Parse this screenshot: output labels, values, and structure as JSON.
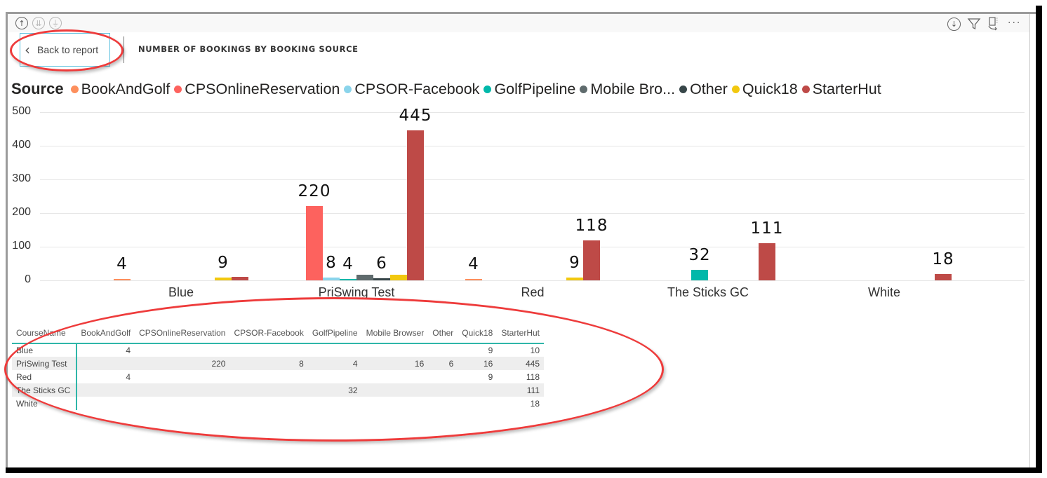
{
  "window": {
    "title": "NUMBER OF BOOKINGS BY BOOKING SOURCE",
    "back_button_label": "Back to report",
    "back_icon": "chevron-left-icon",
    "top_left_icons": [
      "drill-up-icon",
      "drill-down-icon",
      "expand-hierarchy-icon"
    ],
    "top_right_icons": [
      "drill-mode-icon",
      "filter-icon",
      "focus-mode-icon",
      "more-options-icon"
    ]
  },
  "legend": {
    "title": "Source",
    "items": [
      {
        "label": "BookAndGolf",
        "color": "#fd8f5d"
      },
      {
        "label": "CPSOnlineReservation",
        "color": "#fd625e"
      },
      {
        "label": "CPSOR-Facebook",
        "color": "#8ad4eb"
      },
      {
        "label": "GolfPipeline",
        "color": "#01b8aa"
      },
      {
        "label": "Mobile Bro...",
        "color": "#5f6b6d"
      },
      {
        "label": "Other",
        "color": "#374649"
      },
      {
        "label": "Quick18",
        "color": "#f2c80f"
      },
      {
        "label": "StarterHut",
        "color": "#be4a47"
      }
    ]
  },
  "chart_data": {
    "type": "bar",
    "title": "NUMBER OF BOOKINGS BY BOOKING SOURCE",
    "xlabel": "",
    "ylabel": "",
    "ylim": [
      0,
      500
    ],
    "yticks": [
      0,
      100,
      200,
      300,
      400,
      500
    ],
    "grid": true,
    "legend_position": "top",
    "legend_title": "Source",
    "categories": [
      "Blue",
      "PriSwing Test",
      "Red",
      "The Sticks GC",
      "White"
    ],
    "series": [
      {
        "name": "BookAndGolf",
        "color": "#fd8f5d",
        "values": [
          4,
          null,
          4,
          null,
          null
        ]
      },
      {
        "name": "CPSOnlineReservation",
        "color": "#fd625e",
        "values": [
          null,
          220,
          null,
          null,
          null
        ]
      },
      {
        "name": "CPSOR-Facebook",
        "color": "#8ad4eb",
        "values": [
          null,
          8,
          null,
          null,
          null
        ]
      },
      {
        "name": "GolfPipeline",
        "color": "#01b8aa",
        "values": [
          null,
          4,
          null,
          32,
          null
        ]
      },
      {
        "name": "Mobile Browser",
        "color": "#5f6b6d",
        "values": [
          null,
          16,
          null,
          null,
          null
        ]
      },
      {
        "name": "Other",
        "color": "#374649",
        "values": [
          null,
          6,
          null,
          null,
          null
        ]
      },
      {
        "name": "Quick18",
        "color": "#f2c80f",
        "values": [
          9,
          16,
          9,
          null,
          null
        ]
      },
      {
        "name": "StarterHut",
        "color": "#be4a47",
        "values": [
          10,
          445,
          118,
          111,
          18
        ]
      }
    ],
    "visible_data_labels": [
      {
        "category": "Blue",
        "series": "BookAndGolf",
        "text": "4"
      },
      {
        "category": "Blue",
        "series": "Quick18",
        "text": "9"
      },
      {
        "category": "PriSwing Test",
        "series": "CPSOnlineReservation",
        "text": "220"
      },
      {
        "category": "PriSwing Test",
        "series": "CPSOR-Facebook",
        "text": "8"
      },
      {
        "category": "PriSwing Test",
        "series": "GolfPipeline",
        "text": "4"
      },
      {
        "category": "PriSwing Test",
        "series": "Other",
        "text": "6"
      },
      {
        "category": "PriSwing Test",
        "series": "StarterHut",
        "text": "445"
      },
      {
        "category": "Red",
        "series": "BookAndGolf",
        "text": "4"
      },
      {
        "category": "Red",
        "series": "Quick18",
        "text": "9"
      },
      {
        "category": "Red",
        "series": "StarterHut",
        "text": "118"
      },
      {
        "category": "The Sticks GC",
        "series": "GolfPipeline",
        "text": "32"
      },
      {
        "category": "The Sticks GC",
        "series": "StarterHut",
        "text": "111"
      },
      {
        "category": "White",
        "series": "StarterHut",
        "text": "18"
      }
    ]
  },
  "table": {
    "columns": [
      "CourseName",
      "BookAndGolf",
      "CPSOnlineReservation",
      "CPSOR-Facebook",
      "GolfPipeline",
      "Mobile Browser",
      "Other",
      "Quick18",
      "StarterHut"
    ],
    "rows": [
      [
        "Blue",
        "4",
        "",
        "",
        "",
        "",
        "",
        "9",
        "10"
      ],
      [
        "PriSwing Test",
        "",
        "220",
        "8",
        "4",
        "16",
        "6",
        "16",
        "445"
      ],
      [
        "Red",
        "4",
        "",
        "",
        "",
        "",
        "",
        "9",
        "118"
      ],
      [
        "The Sticks GC",
        "",
        "",
        "",
        "32",
        "",
        "",
        "",
        "111"
      ],
      [
        "White",
        "",
        "",
        "",
        "",
        "",
        "",
        "",
        "18"
      ]
    ]
  }
}
